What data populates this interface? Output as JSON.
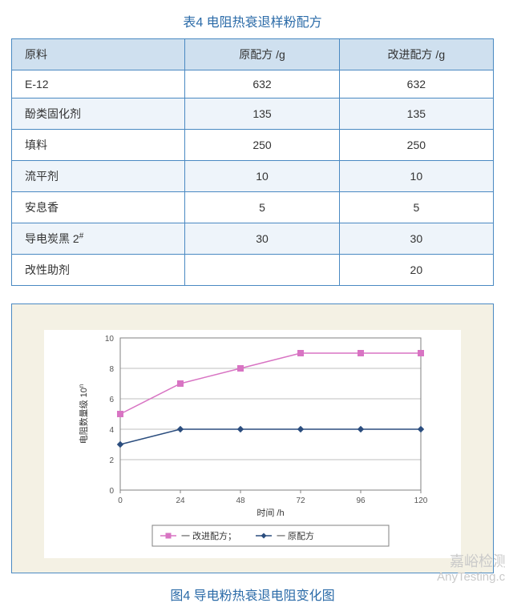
{
  "table": {
    "title": "表4 电阻热衰退样粉配方",
    "columns": [
      "原料",
      "原配方 /g",
      "改进配方 /g"
    ],
    "rows": [
      [
        "E-12",
        "632",
        "632"
      ],
      [
        "酚类固化剂",
        "135",
        "135"
      ],
      [
        "填料",
        "250",
        "250"
      ],
      [
        "流平剂",
        "10",
        "10"
      ],
      [
        "安息香",
        "5",
        "5"
      ],
      [
        "导电炭黑 2#",
        "30",
        "30"
      ],
      [
        "改性助剂",
        "",
        "20"
      ]
    ],
    "header_bg": "#cfe0ef",
    "alt_bg": "#eef4fa",
    "border_color": "#4a89c2"
  },
  "figure": {
    "title": "图4 导电粉热衰退电阻变化图",
    "outer_bg": "#f4f1e4",
    "inner_bg": "#ffffff",
    "border_color": "#4a89c2",
    "chart": {
      "type": "line",
      "x_label": "时间 /h",
      "y_label": "电阻数量级 10n",
      "y_label_sup": "n",
      "x_values": [
        0,
        24,
        48,
        72,
        96,
        120
      ],
      "xlim": [
        0,
        120
      ],
      "xtick_step": 24,
      "ylim": [
        0,
        10
      ],
      "ytick_step": 2,
      "grid_color": "#bfbfbf",
      "axis_color": "#808080",
      "axis_label_fontsize": 10,
      "tick_fontsize": 10,
      "series": [
        {
          "name": "改进配方",
          "legend": "一 改进配方；",
          "marker": "square",
          "color": "#d874c3",
          "line_width": 1.5,
          "marker_size": 7,
          "y": [
            5,
            7,
            8,
            9,
            9,
            9
          ]
        },
        {
          "name": "原配方",
          "legend": "一 原配方",
          "marker": "diamond",
          "color": "#2b4d7e",
          "line_width": 1.5,
          "marker_size": 7,
          "y": [
            3,
            4,
            4,
            4,
            4,
            4
          ]
        }
      ],
      "legend_position": "bottom",
      "legend_border_color": "#808080"
    }
  },
  "watermark": {
    "line1": "嘉峪检测网",
    "line2": "AnyTesting.com",
    "color": "#c9c9c9"
  }
}
